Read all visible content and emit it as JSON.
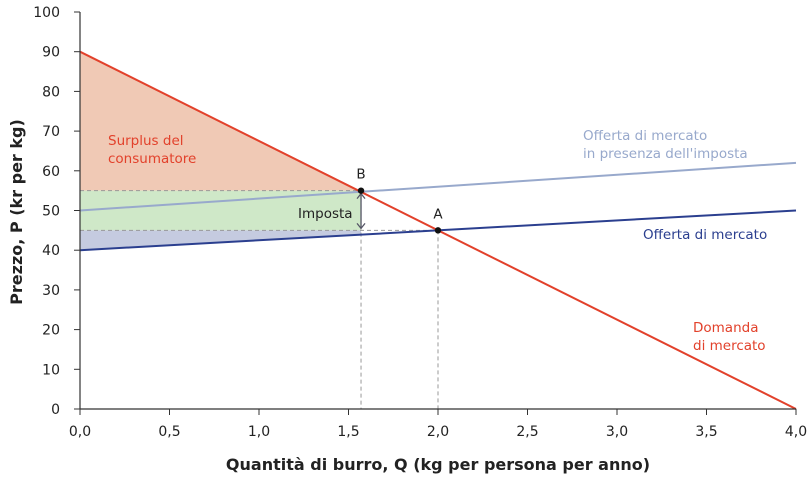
{
  "chart_data": {
    "type": "line",
    "xlabel": "Quantità di burro, Q (kg per persona per anno)",
    "ylabel": "Prezzo, P (kr per kg)",
    "xlim": [
      0,
      4
    ],
    "ylim": [
      0,
      100
    ],
    "xticks": [
      "0,0",
      "0,5",
      "1,0",
      "1,5",
      "2,0",
      "2,5",
      "3,0",
      "3,5",
      "4,0"
    ],
    "yticks": [
      "0",
      "10",
      "20",
      "30",
      "40",
      "50",
      "60",
      "70",
      "80",
      "90",
      "100"
    ],
    "grid": false,
    "series": [
      {
        "name": "Domanda di mercato",
        "color": "#e2412b",
        "points": [
          [
            0,
            90
          ],
          [
            4,
            0
          ]
        ]
      },
      {
        "name": "Offerta di mercato",
        "color": "#2b3f8f",
        "points": [
          [
            0,
            40
          ],
          [
            4,
            50
          ]
        ]
      },
      {
        "name": "Offerta di mercato in presenza dell'imposta",
        "color": "#98a9cc",
        "points": [
          [
            0,
            50
          ],
          [
            4,
            62
          ]
        ]
      }
    ],
    "points": [
      {
        "label": "B",
        "x": 1.57,
        "y": 55
      },
      {
        "label": "A",
        "x": 2.0,
        "y": 45
      }
    ],
    "areas": [
      {
        "name": "Surplus del consumatore",
        "color": "#f0c9b5"
      },
      {
        "name": "tax-revenue",
        "color": "#cfe8c8"
      },
      {
        "name": "producer-surplus",
        "color": "#c5cbe0"
      }
    ],
    "annotations": {
      "consumer_surplus": [
        "Surplus del",
        "consumatore"
      ],
      "tax": "Imposta",
      "demand": [
        "Domanda",
        "di mercato"
      ],
      "supply": "Offerta di mercato",
      "supply_tax": [
        "Offerta di mercato",
        "in presenza dell'imposta"
      ]
    }
  }
}
